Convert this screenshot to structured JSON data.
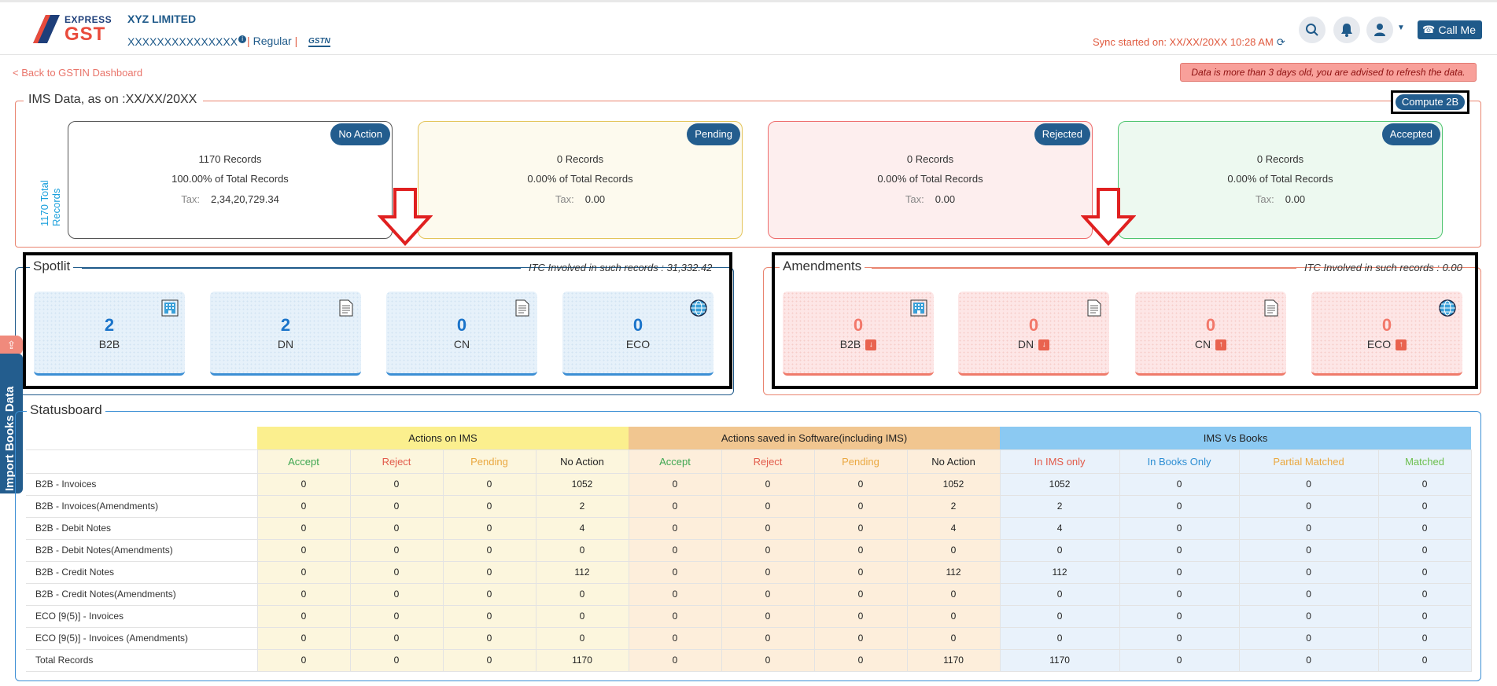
{
  "header": {
    "logo_top": "EXPRESS",
    "logo_bottom": "GST",
    "company": "XYZ LIMITED",
    "gstin": "XXXXXXXXXXXXXXX",
    "info_glyph": "i",
    "separator": "|",
    "type": "Regular",
    "gstn_badge": "GSTN",
    "sync": "Sync started on: XX/XX/20XX 10:28 AM",
    "sync_icon": "refresh-icon",
    "icons": [
      "search-icon",
      "bell-icon",
      "user-icon"
    ],
    "call_label": "Call Me"
  },
  "nav": {
    "back": "< Back to GSTIN Dashboard"
  },
  "warning": "Data is more than 3 days old, you are advised to refresh the data.",
  "ims": {
    "title": "IMS Data, as on :XX/XX/20XX",
    "compute_label": "Compute 2B",
    "total_vertical": "1170 Total Records",
    "tax_label": "Tax:",
    "cards": [
      {
        "tag": "No Action",
        "records": "1170 Records",
        "pct": "100.00% of Total Records",
        "tax": "2,34,20,729.34"
      },
      {
        "tag": "Pending",
        "records": "0 Records",
        "pct": "0.00% of Total Records",
        "tax": "0.00"
      },
      {
        "tag": "Rejected",
        "records": "0 Records",
        "pct": "0.00% of Total Records",
        "tax": "0.00"
      },
      {
        "tag": "Accepted",
        "records": "0 Records",
        "pct": "0.00% of Total Records",
        "tax": "0.00"
      }
    ]
  },
  "spotlit": {
    "title": "Spotlit",
    "itc": "ITC Involved in such records : 31,332.42",
    "items": [
      {
        "value": "2",
        "label": "B2B",
        "icon": "building-icon"
      },
      {
        "value": "2",
        "label": "DN",
        "icon": "document-icon"
      },
      {
        "value": "0",
        "label": "CN",
        "icon": "document-icon"
      },
      {
        "value": "0",
        "label": "ECO",
        "icon": "globe-icon"
      }
    ]
  },
  "amendments": {
    "title": "Amendments",
    "itc": "ITC Involved in such records : 0.00",
    "items": [
      {
        "value": "0",
        "label": "B2B",
        "icon": "building-icon",
        "arrow": "down"
      },
      {
        "value": "0",
        "label": "DN",
        "icon": "document-icon",
        "arrow": "down"
      },
      {
        "value": "0",
        "label": "CN",
        "icon": "document-icon",
        "arrow": "up"
      },
      {
        "value": "0",
        "label": "ECO",
        "icon": "globe-icon",
        "arrow": "up"
      }
    ]
  },
  "sidetab": {
    "label": "Import Books Data",
    "icon": "upload-icon"
  },
  "statusboard": {
    "title": "Statusboard",
    "groups": [
      "Actions on IMS",
      "Actions saved in Software(including IMS)",
      "IMS Vs Books"
    ],
    "subheaders": [
      "Accept",
      "Reject",
      "Pending",
      "No Action",
      "Accept",
      "Reject",
      "Pending",
      "No Action",
      "In IMS only",
      "In Books Only",
      "Partial Matched",
      "Matched"
    ],
    "rows": [
      {
        "label": "B2B - Invoices",
        "v": [
          "0",
          "0",
          "0",
          "1052",
          "0",
          "0",
          "0",
          "1052",
          "1052",
          "0",
          "0",
          "0"
        ]
      },
      {
        "label": "B2B - Invoices(Amendments)",
        "v": [
          "0",
          "0",
          "0",
          "2",
          "0",
          "0",
          "0",
          "2",
          "2",
          "0",
          "0",
          "0"
        ]
      },
      {
        "label": "B2B - Debit Notes",
        "v": [
          "0",
          "0",
          "0",
          "4",
          "0",
          "0",
          "0",
          "4",
          "4",
          "0",
          "0",
          "0"
        ]
      },
      {
        "label": "B2B - Debit Notes(Amendments)",
        "v": [
          "0",
          "0",
          "0",
          "0",
          "0",
          "0",
          "0",
          "0",
          "0",
          "0",
          "0",
          "0"
        ]
      },
      {
        "label": "B2B - Credit Notes",
        "v": [
          "0",
          "0",
          "0",
          "112",
          "0",
          "0",
          "0",
          "112",
          "112",
          "0",
          "0",
          "0"
        ]
      },
      {
        "label": "B2B - Credit Notes(Amendments)",
        "v": [
          "0",
          "0",
          "0",
          "0",
          "0",
          "0",
          "0",
          "0",
          "0",
          "0",
          "0",
          "0"
        ]
      },
      {
        "label": "ECO [9(5)] - Invoices",
        "v": [
          "0",
          "0",
          "0",
          "0",
          "0",
          "0",
          "0",
          "0",
          "0",
          "0",
          "0",
          "0"
        ]
      },
      {
        "label": "ECO [9(5)] - Invoices (Amendments)",
        "v": [
          "0",
          "0",
          "0",
          "0",
          "0",
          "0",
          "0",
          "0",
          "0",
          "0",
          "0",
          "0"
        ]
      },
      {
        "label": "Total Records",
        "v": [
          "0",
          "0",
          "0",
          "1170",
          "0",
          "0",
          "0",
          "1170",
          "1170",
          "0",
          "0",
          "0"
        ]
      }
    ]
  }
}
